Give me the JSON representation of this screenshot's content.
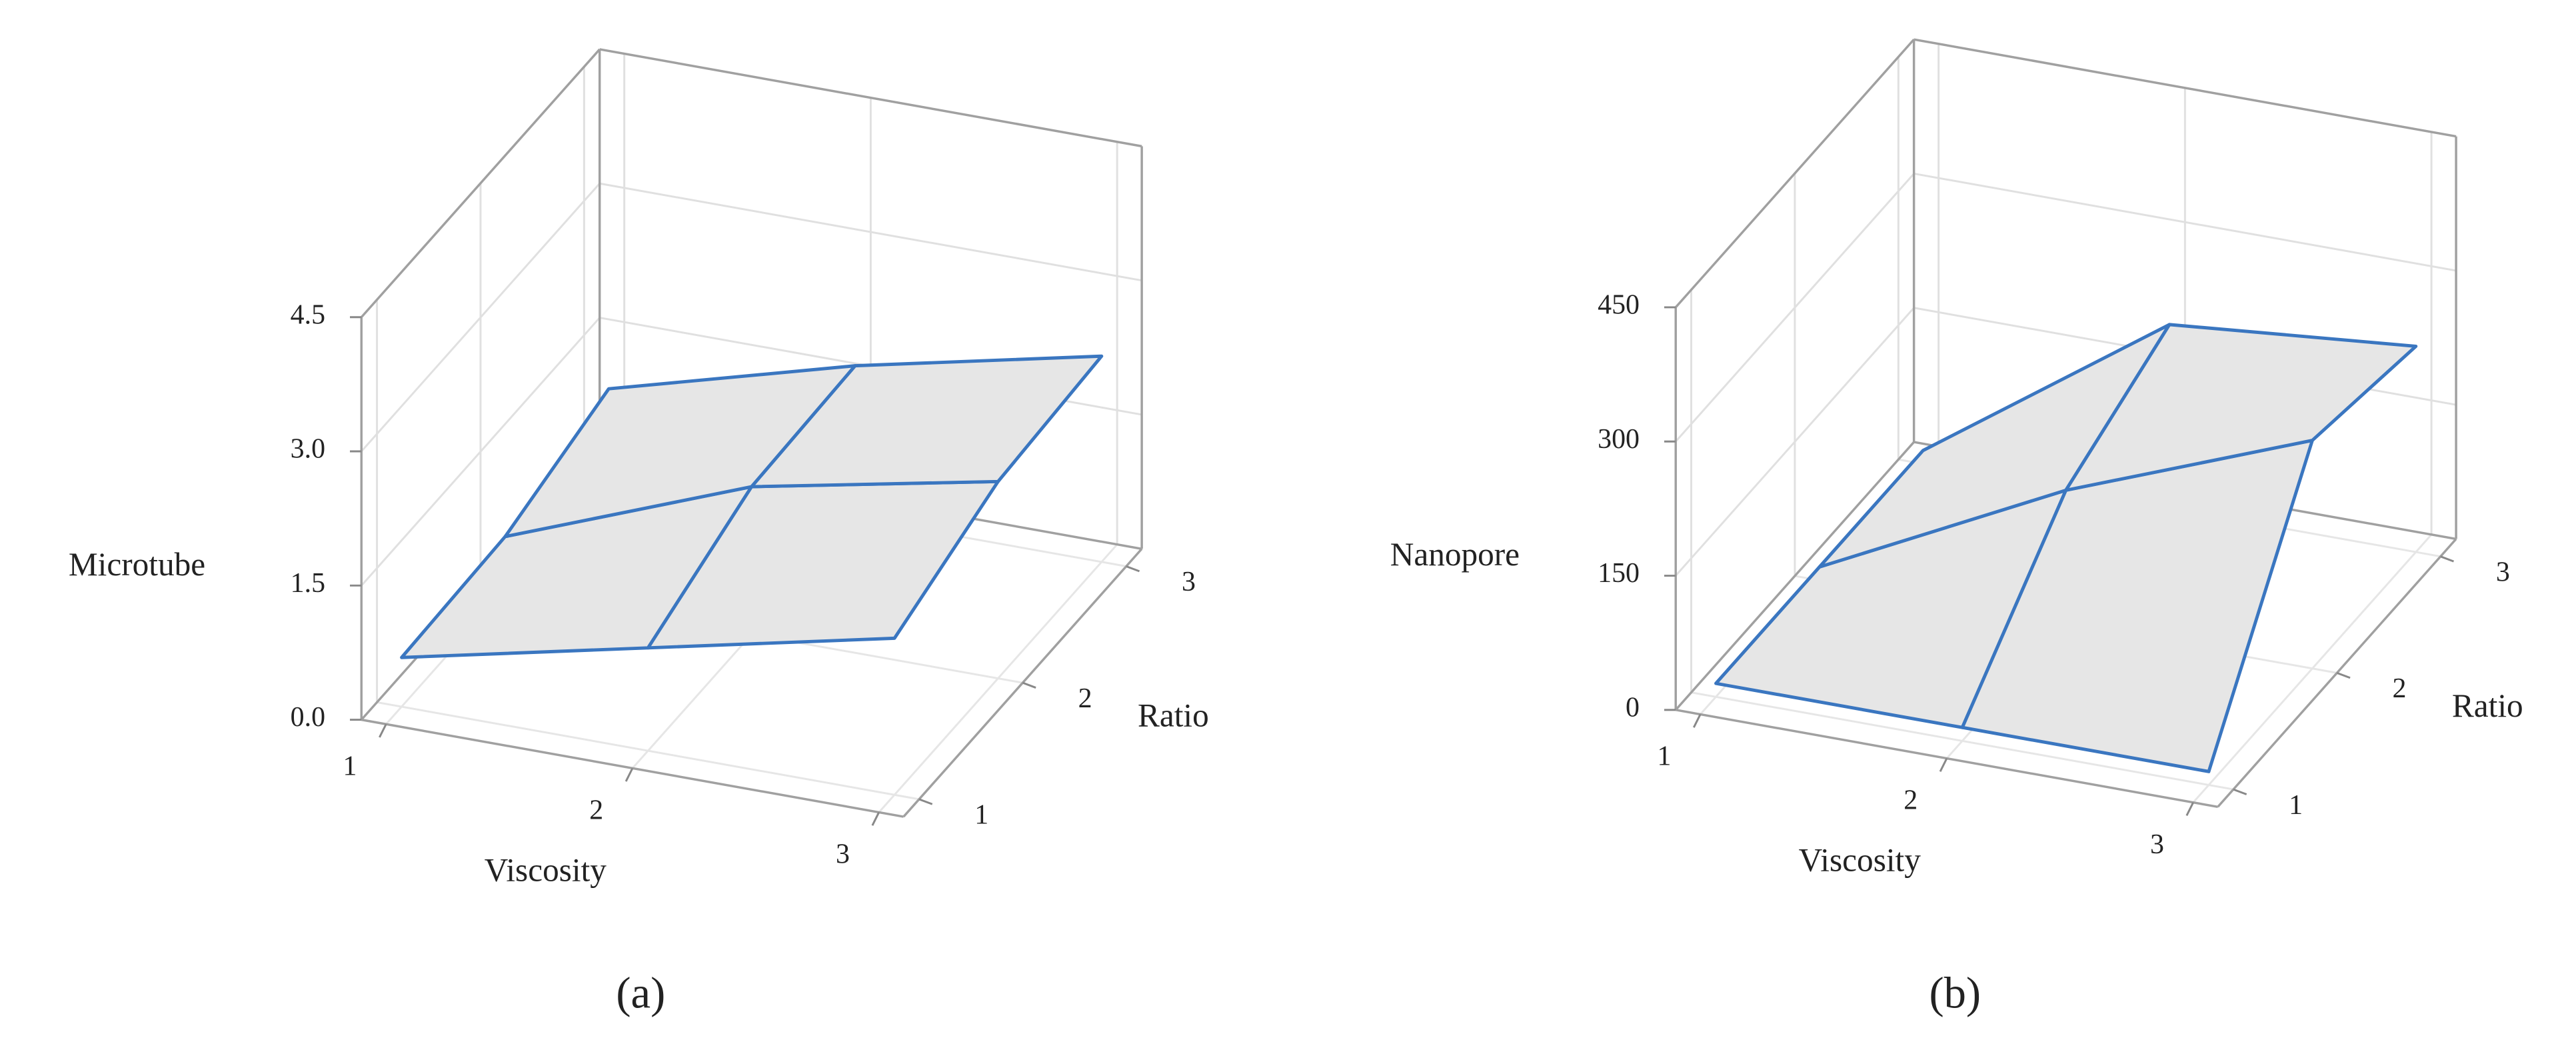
{
  "chart_data": [
    {
      "type": "surface",
      "z_label": "Microtube",
      "x_label": "Viscosity",
      "y_label": "Ratio",
      "caption": "(a)",
      "x": [
        1,
        2,
        3
      ],
      "y": [
        1,
        2,
        3
      ],
      "z": [
        [
          0.55,
          1.15,
          1.75
        ],
        [
          0.6,
          1.65,
          2.2
        ],
        [
          0.95,
          1.7,
          2.3
        ]
      ],
      "color": "#3a76c0",
      "fill": "#e6e6e6",
      "xlim": [
        0.9,
        3.1
      ],
      "ylim": [
        0.85,
        3.15
      ],
      "zlim": [
        0,
        4.5
      ],
      "xticks": [
        1,
        2,
        3
      ],
      "yticks": [
        1,
        2,
        3
      ],
      "zticks": [
        {
          "value": 0,
          "label": "0.0"
        },
        1.5,
        {
          "value": 3,
          "label": "3.0"
        },
        4.5
      ],
      "grid": true
    },
    {
      "type": "surface",
      "z_label": "Nanopore",
      "x_label": "Viscosity",
      "y_label": "Ratio",
      "caption": "(b)",
      "x": [
        1,
        2,
        3
      ],
      "y": [
        1,
        2,
        3
      ],
      "z": [
        [
          15,
          15,
          15
        ],
        [
          15,
          150,
          255
        ],
        [
          15,
          205,
          230
        ]
      ],
      "color": "#3a76c0",
      "fill": "#e6e6e6",
      "xlim": [
        0.9,
        3.1
      ],
      "ylim": [
        0.85,
        3.15
      ],
      "zlim": [
        0,
        450
      ],
      "xticks": [
        1,
        2,
        3
      ],
      "yticks": [
        1,
        2,
        3
      ],
      "zticks": [
        0,
        150,
        300,
        450
      ],
      "grid": true
    }
  ]
}
